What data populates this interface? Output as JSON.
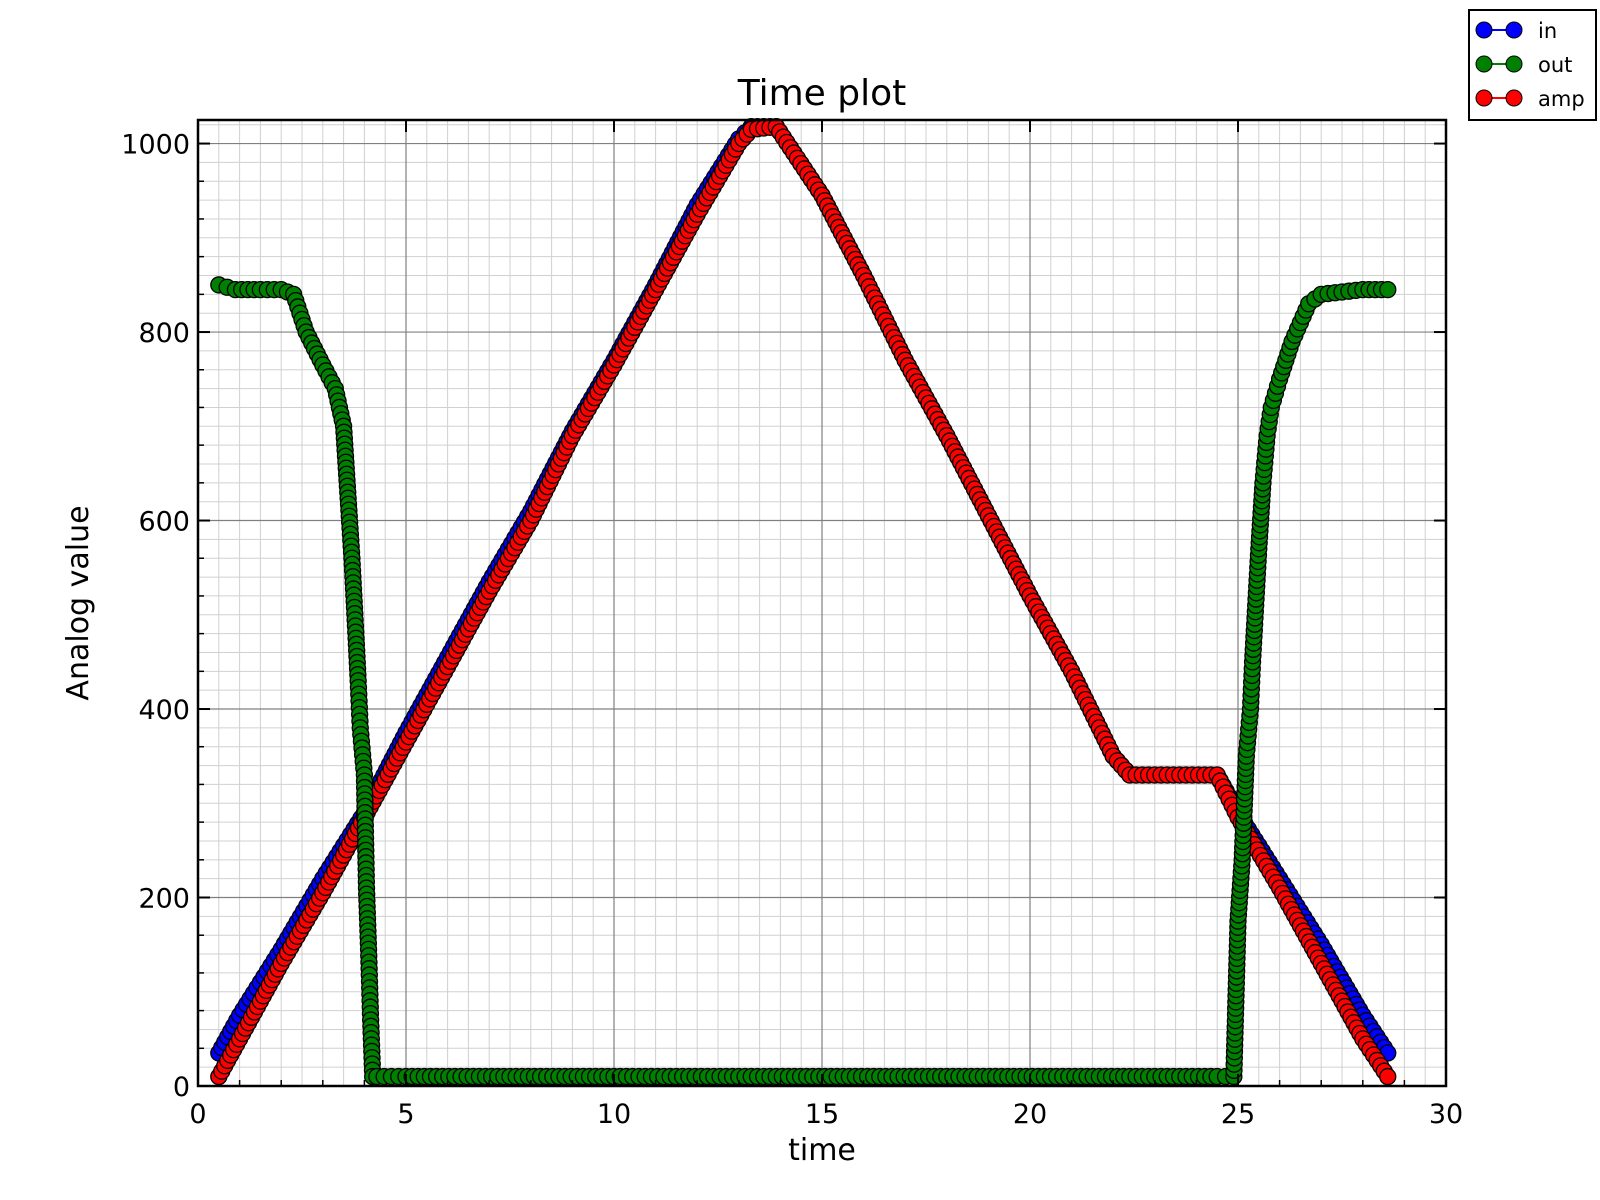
{
  "chart_data": {
    "type": "line",
    "title": "Time plot",
    "xlabel": "time",
    "ylabel": "Analog value",
    "xlim": [
      0,
      30
    ],
    "ylim": [
      0,
      1025
    ],
    "xticks": [
      0,
      5,
      10,
      15,
      20,
      25,
      30
    ],
    "yticks": [
      0,
      200,
      400,
      600,
      800,
      1000
    ],
    "grid": true,
    "legend_position": "outside-top-right",
    "series": [
      {
        "name": "in",
        "color": "#0000ff",
        "x": [
          0.5,
          1.0,
          2.0,
          3.0,
          4.0,
          5.0,
          6.0,
          7.0,
          8.0,
          9.0,
          10.0,
          11.0,
          12.0,
          13.0,
          13.3,
          13.9,
          15.0,
          16.0,
          17.0,
          18.0,
          19.0,
          20.0,
          21.0,
          22.0,
          22.4,
          24.5,
          25.0,
          26.0,
          27.0,
          28.0,
          28.6
        ],
        "y": [
          35,
          75,
          145,
          220,
          290,
          375,
          455,
          535,
          610,
          695,
          770,
          850,
          935,
          1005,
          1018,
          1018,
          945,
          860,
          770,
          690,
          605,
          520,
          440,
          350,
          330,
          330,
          290,
          220,
          150,
          75,
          35
        ]
      },
      {
        "name": "out",
        "color": "#008000",
        "x": [
          0.5,
          0.9,
          1.5,
          2.0,
          2.3,
          2.6,
          3.0,
          3.3,
          3.5,
          3.6,
          3.7,
          3.8,
          3.85,
          3.9,
          4.0,
          4.05,
          4.1,
          4.15,
          4.2,
          4.3,
          5.0,
          10.0,
          13.3,
          13.9,
          18.0,
          22.4,
          24.5,
          24.9,
          25.0,
          25.1,
          25.2,
          25.3,
          25.35,
          25.4,
          25.5,
          25.6,
          25.7,
          25.8,
          26.0,
          26.3,
          26.7,
          27.0,
          28.0,
          28.6
        ],
        "y": [
          850,
          845,
          845,
          845,
          840,
          800,
          765,
          740,
          700,
          630,
          560,
          475,
          430,
          380,
          330,
          210,
          145,
          70,
          10,
          10,
          10,
          10,
          10,
          10,
          10,
          10,
          10,
          10,
          175,
          240,
          350,
          400,
          450,
          490,
          570,
          640,
          690,
          720,
          750,
          790,
          830,
          840,
          845,
          845
        ]
      },
      {
        "name": "amp",
        "color": "#ff0000",
        "x": [
          0.5,
          1.0,
          2.0,
          3.0,
          4.0,
          5.0,
          6.0,
          7.0,
          8.0,
          9.0,
          10.0,
          11.0,
          12.0,
          13.0,
          13.3,
          13.9,
          15.0,
          16.0,
          17.0,
          18.0,
          19.0,
          20.0,
          21.0,
          22.0,
          22.4,
          24.5,
          25.0,
          26.0,
          27.0,
          28.0,
          28.6
        ],
        "y": [
          10,
          50,
          130,
          205,
          285,
          365,
          445,
          525,
          600,
          690,
          765,
          845,
          925,
          1000,
          1015,
          1018,
          945,
          860,
          770,
          690,
          605,
          520,
          440,
          350,
          330,
          330,
          285,
          210,
          130,
          50,
          10
        ]
      }
    ]
  }
}
